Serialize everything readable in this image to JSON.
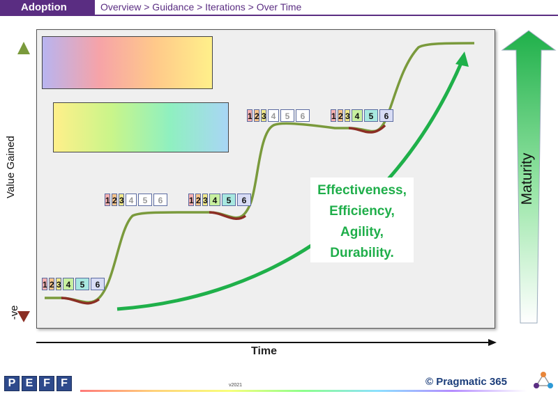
{
  "header": {
    "section": "Adoption",
    "breadcrumb": "Overview > Guidance > Iterations > Over Time"
  },
  "diagram": {
    "y_axis_label": "Value Gained",
    "y_axis_negative_label": "-ve",
    "x_axis_label": "Time",
    "maturity_label": "Maturity",
    "outcomes": [
      "Effectiveness,",
      "Efficiency,",
      "Agility,",
      "Durability."
    ],
    "step_numbers": [
      "1",
      "2",
      "3",
      "4",
      "5",
      "6"
    ],
    "colors": {
      "value_curve": "#7a9a3c",
      "dip": "#8b2e24",
      "maturity_arrow": "#1fb04a",
      "brand": "#5a2d82"
    }
  },
  "footer": {
    "logo_letters": [
      "P",
      "E",
      "F",
      "F"
    ],
    "version": "v2021",
    "copyright": "© Pragmatic 365"
  }
}
